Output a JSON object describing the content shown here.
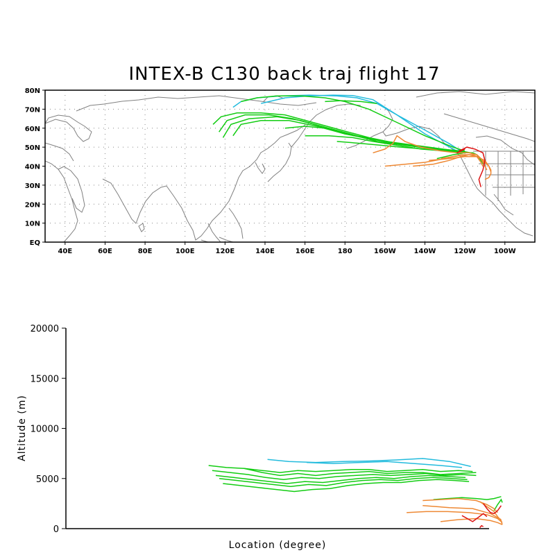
{
  "title": "INTEX-B C130 back traj flight 17",
  "chart_data": [
    {
      "type": "map-trajectories",
      "title": "INTEX-B C130 back traj flight 17",
      "lon_range": [
        30,
        275
      ],
      "lat_range": [
        0,
        80
      ],
      "x_ticks": [
        "40E",
        "60E",
        "80E",
        "100E",
        "120E",
        "140E",
        "160E",
        "180",
        "160W",
        "140W",
        "120W",
        "100W"
      ],
      "y_ticks": [
        "EQ",
        "10N",
        "20N",
        "30N",
        "40N",
        "50N",
        "60N",
        "70N",
        "80N"
      ],
      "grid": true,
      "colors": {
        "cyan": "#22bbdd",
        "green": "#11cc11",
        "orange": "#ee8833",
        "red": "#dd1111",
        "coast": "#808080"
      },
      "series": [
        {
          "color": "cyan",
          "lon": [
            124,
            128,
            136,
            148,
            162,
            176,
            186,
            196,
            206,
            220,
            232,
            238
          ],
          "lat": [
            71,
            74,
            76,
            77,
            77.4,
            77,
            76,
            73,
            67,
            59,
            52,
            48
          ]
        },
        {
          "color": "cyan",
          "lon": [
            138,
            150,
            162,
            174,
            184,
            194,
            206,
            220,
            236
          ],
          "lat": [
            73,
            76,
            77,
            77.4,
            77.2,
            75,
            67,
            57,
            48
          ]
        },
        {
          "color": "green",
          "lon": [
            128,
            136,
            146,
            158,
            170,
            180,
            192,
            206,
            220,
            234,
            240
          ],
          "lat": [
            74,
            76,
            77,
            77,
            76,
            74,
            70,
            63,
            56,
            50,
            48
          ]
        },
        {
          "color": "green",
          "lon": [
            170,
            178,
            188,
            196
          ],
          "lat": [
            74,
            74.5,
            74,
            73
          ]
        },
        {
          "color": "green",
          "lon": [
            114,
            118,
            126,
            138,
            150,
            164,
            178,
            192,
            206,
            220,
            234,
            240
          ],
          "lat": [
            62,
            66,
            68,
            68,
            67,
            63,
            59,
            55,
            52,
            50,
            48,
            47
          ]
        },
        {
          "color": "green",
          "lon": [
            117,
            121,
            130,
            142,
            154,
            168,
            182,
            196,
            210,
            224,
            236,
            240
          ],
          "lat": [
            58,
            64,
            67,
            67,
            65,
            61,
            57,
            53,
            51,
            49,
            48,
            47
          ]
        },
        {
          "color": "green",
          "lon": [
            119,
            123,
            132,
            146,
            158,
            172,
            186,
            200,
            214,
            228,
            238,
            241
          ],
          "lat": [
            55,
            62,
            65,
            66,
            64,
            60,
            56,
            53,
            51,
            49,
            48,
            47
          ]
        },
        {
          "color": "green",
          "lon": [
            124,
            128,
            138,
            152,
            166,
            180,
            194,
            208,
            222,
            236,
            242
          ],
          "lat": [
            56,
            62,
            64,
            64,
            61,
            57,
            54,
            52,
            50,
            48,
            47
          ]
        },
        {
          "color": "green",
          "lon": [
            150,
            160,
            170,
            180,
            190,
            200,
            212,
            226,
            238,
            243
          ],
          "lat": [
            60,
            61,
            60,
            57,
            55,
            53,
            51,
            49,
            48,
            47
          ]
        },
        {
          "color": "green",
          "lon": [
            160,
            172,
            184,
            194,
            206,
            218,
            230,
            240,
            244
          ],
          "lat": [
            56,
            56,
            55,
            53,
            51,
            49,
            48,
            47,
            47
          ]
        },
        {
          "color": "green",
          "lon": [
            176,
            188,
            198,
            208,
            220,
            232,
            242
          ],
          "lat": [
            53,
            52,
            51,
            50,
            49,
            48,
            47
          ]
        },
        {
          "color": "green",
          "lon": [
            226,
            234,
            240,
            244,
            246,
            248,
            250
          ],
          "lat": [
            44,
            46,
            47,
            47,
            46,
            43,
            40
          ]
        },
        {
          "color": "orange",
          "lon": [
            194,
            200,
            204,
            206,
            210,
            218,
            228,
            236,
            242,
            246,
            248,
            250
          ],
          "lat": [
            47,
            49,
            52,
            56,
            53,
            50,
            48,
            47,
            47,
            46,
            44,
            41
          ]
        },
        {
          "color": "orange",
          "lon": [
            200,
            210,
            220,
            230,
            238,
            244,
            248,
            250,
            251
          ],
          "lat": [
            40,
            41,
            42,
            44,
            46,
            46,
            44,
            40,
            38
          ]
        },
        {
          "color": "orange",
          "lon": [
            214,
            224,
            232,
            238,
            242,
            246,
            248,
            249
          ],
          "lat": [
            40,
            41,
            43,
            45,
            46,
            45,
            42,
            40
          ]
        },
        {
          "color": "orange",
          "lon": [
            228,
            234,
            240,
            244,
            246
          ],
          "lat": [
            44,
            45,
            46,
            46,
            45
          ]
        },
        {
          "color": "orange",
          "lon": [
            222,
            232,
            240,
            246,
            250,
            252,
            253
          ],
          "lat": [
            43,
            44,
            45,
            45,
            43,
            40,
            37
          ]
        },
        {
          "color": "orange",
          "lon": [
            246,
            248,
            250,
            252,
            253,
            253,
            252,
            250
          ],
          "lat": [
            46,
            44,
            42,
            40,
            38,
            36,
            34,
            33
          ]
        },
        {
          "color": "red",
          "lon": [
            237,
            239,
            241,
            243,
            245,
            247,
            249,
            250,
            249,
            247,
            248
          ],
          "lat": [
            48,
            49,
            50,
            49.5,
            49,
            48,
            47,
            43,
            38,
            33,
            29
          ]
        },
        {
          "color": "red",
          "lon": [
            236,
            238,
            240
          ],
          "lat": [
            47,
            48,
            49
          ]
        }
      ]
    },
    {
      "type": "line",
      "xlabel": "Location (degree)",
      "ylabel": "Altitude (m)",
      "ylim": [
        0,
        20000
      ],
      "y_ticks": [
        "0",
        "5000",
        "10000",
        "15000",
        "20000"
      ],
      "xlim": [
        30,
        275
      ],
      "series": [
        {
          "color": "cyan",
          "x": [
            143,
            155,
            170,
            185,
            200,
            215,
            230,
            245,
            257
          ],
          "y": [
            6900,
            6700,
            6600,
            6700,
            6750,
            6850,
            7000,
            6700,
            6200
          ]
        },
        {
          "color": "cyan",
          "x": [
            165,
            180,
            195,
            210,
            225,
            240,
            252
          ],
          "y": [
            6600,
            6500,
            6600,
            6700,
            6500,
            6300,
            6100
          ]
        },
        {
          "color": "green",
          "x": [
            110,
            120,
            130,
            140,
            150,
            160,
            170,
            180,
            190,
            200,
            210,
            220,
            230,
            240,
            250,
            260
          ],
          "y": [
            6300,
            6100,
            6000,
            5600,
            5300,
            5500,
            5300,
            5500,
            5600,
            5700,
            5500,
            5600,
            5600,
            5400,
            5500,
            5600
          ]
        },
        {
          "color": "green",
          "x": [
            112,
            122,
            132,
            142,
            152,
            162,
            172,
            182,
            192,
            202,
            212,
            222,
            232,
            242,
            252,
            260
          ],
          "y": [
            5800,
            5600,
            5400,
            5100,
            4900,
            5100,
            5000,
            5200,
            5300,
            5400,
            5300,
            5400,
            5500,
            5300,
            5400,
            5300
          ]
        },
        {
          "color": "green",
          "x": [
            114,
            124,
            134,
            144,
            154,
            164,
            174,
            184,
            194,
            204,
            214,
            224,
            234,
            244,
            254
          ],
          "y": [
            5300,
            5100,
            4900,
            4700,
            4500,
            4700,
            4600,
            4800,
            5000,
            5100,
            5000,
            5200,
            5300,
            5200,
            5100
          ]
        },
        {
          "color": "green",
          "x": [
            116,
            126,
            136,
            146,
            156,
            166,
            176,
            186,
            196,
            206,
            216,
            226,
            236,
            246,
            255
          ],
          "y": [
            5000,
            4800,
            4600,
            4400,
            4200,
            4400,
            4300,
            4600,
            4800,
            4900,
            4800,
            5000,
            5100,
            5000,
            4900
          ]
        },
        {
          "color": "green",
          "x": [
            118,
            128,
            138,
            148,
            158,
            168,
            178,
            188,
            198,
            208,
            218,
            228,
            238,
            248,
            256
          ],
          "y": [
            4500,
            4300,
            4100,
            3900,
            3700,
            3900,
            4000,
            4300,
            4500,
            4600,
            4600,
            4800,
            4900,
            4800,
            4700
          ]
        },
        {
          "color": "green",
          "x": [
            130,
            140,
            150,
            160,
            170,
            180,
            190,
            200,
            210,
            220,
            230,
            240,
            250,
            258
          ],
          "y": [
            6000,
            5800,
            5600,
            5800,
            5700,
            5800,
            5900,
            5900,
            5700,
            5800,
            5900,
            5700,
            5800,
            5700
          ]
        },
        {
          "color": "green",
          "x": [
            236,
            244,
            252,
            260,
            266,
            270,
            274
          ],
          "y": [
            2900,
            3000,
            3100,
            3000,
            2900,
            3000,
            3200
          ]
        },
        {
          "color": "green",
          "x": [
            270,
            272,
            274,
            276
          ],
          "y": [
            1800,
            2400,
            2900,
            2600
          ]
        },
        {
          "color": "orange",
          "x": [
            230,
            240,
            250,
            260,
            266,
            270,
            272
          ],
          "y": [
            2800,
            2900,
            3000,
            2800,
            2400,
            2000,
            1600
          ]
        },
        {
          "color": "orange",
          "x": [
            221,
            232,
            244,
            256,
            266,
            272,
            276
          ],
          "y": [
            1600,
            1700,
            1700,
            1600,
            1400,
            1000,
            600
          ]
        },
        {
          "color": "orange",
          "x": [
            240,
            250,
            260,
            268,
            272,
            276
          ],
          "y": [
            700,
            900,
            1000,
            800,
            600,
            400
          ]
        },
        {
          "color": "orange",
          "x": [
            230,
            245,
            258,
            268,
            274
          ],
          "y": [
            2300,
            2100,
            2000,
            1500,
            900
          ]
        },
        {
          "color": "orange",
          "x": [
            262,
            266,
            270,
            272,
            274,
            276
          ],
          "y": [
            2700,
            2200,
            1700,
            1200,
            800,
            400
          ]
        },
        {
          "color": "red",
          "x": [
            252,
            255,
            258,
            261,
            264,
            266
          ],
          "y": [
            1300,
            1000,
            700,
            1100,
            1500,
            1200
          ]
        },
        {
          "color": "red",
          "x": [
            264,
            266,
            268,
            270,
            272,
            274
          ],
          "y": [
            2500,
            2000,
            1600,
            1500,
            1800,
            2300
          ]
        },
        {
          "color": "red",
          "x": [
            262,
            263,
            264
          ],
          "y": [
            100,
            300,
            200
          ]
        }
      ]
    }
  ]
}
